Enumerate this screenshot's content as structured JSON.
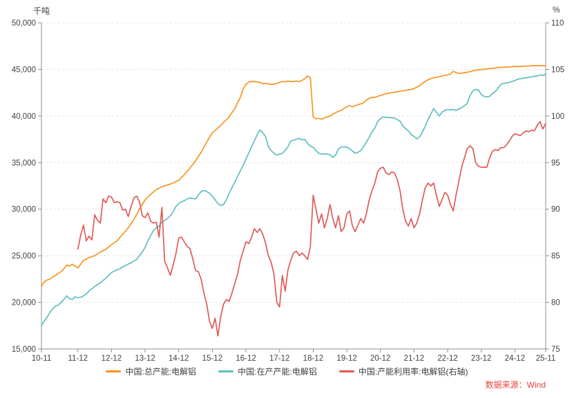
{
  "footer": {
    "source": "数据来源：Wind"
  },
  "chart_data": {
    "type": "line",
    "title": "",
    "grid": "horizontal-dashed",
    "legend_position": "bottom",
    "x_start": "2010-11",
    "x_end": "2025-11",
    "x_frequency": "monthly",
    "left_axis": {
      "label": "千吨",
      "min": 15000,
      "max": 50000,
      "step": 5000
    },
    "right_axis": {
      "label": "%",
      "min": 75,
      "max": 110,
      "step": 5
    },
    "x_ticks": [
      {
        "label": "10-11",
        "i": 0
      },
      {
        "label": "11-12",
        "i": 13
      },
      {
        "label": "12-12",
        "i": 25
      },
      {
        "label": "13-12",
        "i": 37
      },
      {
        "label": "14-12",
        "i": 49
      },
      {
        "label": "15-12",
        "i": 61
      },
      {
        "label": "16-12",
        "i": 73
      },
      {
        "label": "17-12",
        "i": 85
      },
      {
        "label": "18-12",
        "i": 97
      },
      {
        "label": "19-12",
        "i": 109
      },
      {
        "label": "20-12",
        "i": 121
      },
      {
        "label": "21-12",
        "i": 133
      },
      {
        "label": "22-12",
        "i": 145
      },
      {
        "label": "23-12",
        "i": 157
      },
      {
        "label": "24-12",
        "i": 169
      },
      {
        "label": "25-11",
        "i": 180
      }
    ],
    "series": [
      {
        "name": "中国:总产能:电解铝",
        "axis": "left",
        "color": "#F7941E",
        "values": [
          21700,
          22200,
          22400,
          22500,
          22700,
          22900,
          23100,
          23300,
          23600,
          24000,
          23900,
          24100,
          23900,
          23700,
          24100,
          24500,
          24650,
          24800,
          24900,
          25000,
          25200,
          25400,
          25550,
          25700,
          25950,
          26200,
          26400,
          26600,
          26950,
          27300,
          27650,
          28000,
          28450,
          28900,
          29450,
          30000,
          30500,
          31000,
          31300,
          31600,
          31850,
          32100,
          32250,
          32400,
          32500,
          32600,
          32700,
          32800,
          32950,
          33100,
          33400,
          33700,
          34050,
          34400,
          34800,
          35200,
          35650,
          36100,
          36650,
          37200,
          37700,
          38200,
          38450,
          38700,
          39000,
          39300,
          39600,
          39900,
          40350,
          40800,
          41400,
          42000,
          42900,
          43400,
          43650,
          43700,
          43700,
          43650,
          43600,
          43450,
          43500,
          43450,
          43400,
          43400,
          43500,
          43600,
          43700,
          43700,
          43750,
          43700,
          43700,
          43750,
          43700,
          43800,
          44000,
          44300,
          44100,
          39900,
          39700,
          39750,
          39650,
          39800,
          39900,
          40000,
          40200,
          40350,
          40500,
          40600,
          40800,
          41000,
          41100,
          41000,
          41100,
          41200,
          41300,
          41400,
          41700,
          41900,
          42000,
          42000,
          42100,
          42200,
          42300,
          42400,
          42450,
          42500,
          42550,
          42600,
          42650,
          42700,
          42750,
          42800,
          42850,
          42950,
          43100,
          43250,
          43500,
          43700,
          43900,
          44000,
          44100,
          44150,
          44200,
          44300,
          44350,
          44400,
          44500,
          44800,
          44650,
          44550,
          44600,
          44650,
          44700,
          44750,
          44850,
          44900,
          44950,
          45000,
          45000,
          45050,
          45100,
          45100,
          45150,
          45200,
          45200,
          45250,
          45250,
          45250,
          45300,
          45300,
          45300,
          45300,
          45350,
          45350,
          45350,
          45400,
          45400,
          45400,
          45400,
          45400,
          45400
        ]
      },
      {
        "name": "中国:在产产能:电解铝",
        "axis": "left",
        "color": "#5EBFC1",
        "values": [
          17500,
          18000,
          18400,
          18900,
          19300,
          19600,
          19700,
          20000,
          20300,
          20700,
          20400,
          20300,
          20600,
          20500,
          20550,
          20700,
          20900,
          21200,
          21450,
          21700,
          21900,
          22100,
          22350,
          22600,
          22900,
          23200,
          23350,
          23500,
          23600,
          23800,
          23950,
          24100,
          24250,
          24450,
          24600,
          25000,
          25400,
          25900,
          26600,
          27200,
          27700,
          28000,
          28200,
          28600,
          28800,
          29000,
          29300,
          29700,
          30300,
          30600,
          30800,
          30900,
          31100,
          31200,
          31150,
          31100,
          31500,
          31900,
          32000,
          31900,
          31700,
          31400,
          31000,
          30600,
          30400,
          30500,
          31000,
          31700,
          32300,
          32900,
          33500,
          34100,
          34700,
          35400,
          36000,
          36700,
          37300,
          38000,
          38500,
          38200,
          37800,
          36700,
          36300,
          36000,
          35800,
          35900,
          36000,
          36300,
          36700,
          37300,
          37400,
          37500,
          37600,
          37450,
          37500,
          37050,
          36750,
          36650,
          36300,
          36000,
          35900,
          35950,
          35900,
          35850,
          35550,
          35800,
          36450,
          36650,
          36700,
          36650,
          36500,
          36250,
          36000,
          36100,
          36300,
          36700,
          37200,
          37700,
          38300,
          38700,
          39400,
          39700,
          39900,
          39850,
          39850,
          39800,
          39800,
          39600,
          39450,
          38950,
          38650,
          38400,
          38000,
          37800,
          37550,
          37750,
          38300,
          38900,
          39600,
          40200,
          40800,
          40400,
          40000,
          40400,
          40600,
          40700,
          40650,
          40700,
          40600,
          40750,
          40900,
          41100,
          41350,
          42200,
          42700,
          42850,
          42800,
          42300,
          42100,
          42050,
          42100,
          42400,
          42600,
          43000,
          43400,
          43500,
          43550,
          43600,
          43700,
          43800,
          43950,
          44000,
          44050,
          44100,
          44150,
          44200,
          44250,
          44300,
          44400,
          44350,
          44500
        ]
      },
      {
        "name": "中国:产能利用率:电解铝(右轴)",
        "axis": "right",
        "color": "#DF5A58",
        "values": [
          null,
          null,
          null,
          null,
          null,
          null,
          null,
          null,
          null,
          null,
          null,
          null,
          null,
          85.7,
          87.2,
          88.3,
          86.6,
          87.1,
          86.7,
          89.4,
          88.8,
          88.5,
          91.1,
          90.7,
          91.4,
          91.3,
          90.7,
          90.8,
          90.7,
          89.9,
          90.0,
          89.2,
          90.3,
          91.2,
          91.4,
          90.8,
          89.3,
          89.1,
          89.6,
          88.7,
          88.5,
          88.6,
          87.0,
          90.2,
          84.4,
          83.7,
          82.9,
          84.0,
          85.2,
          86.9,
          87.0,
          86.5,
          86.0,
          85.8,
          84.7,
          83.4,
          83.3,
          82.5,
          81.0,
          79.8,
          78.0,
          77.2,
          78.3,
          76.4,
          78.5,
          79.8,
          80.3,
          80.1,
          81.0,
          82.0,
          83.0,
          84.5,
          85.5,
          86.5,
          86.3,
          87.0,
          87.9,
          87.5,
          87.9,
          87.3,
          86.4,
          85.0,
          84.3,
          83.0,
          80.0,
          79.5,
          82.9,
          81.2,
          83.5,
          84.5,
          85.3,
          85.5,
          85.0,
          85.3,
          85.0,
          84.6,
          86.0,
          91.5,
          90.0,
          88.5,
          89.5,
          88.0,
          89.0,
          90.5,
          89.0,
          88.0,
          89.3,
          87.6,
          88.0,
          89.5,
          89.8,
          88.2,
          87.6,
          88.3,
          89.0,
          88.5,
          89.5,
          91.0,
          92.0,
          92.8,
          94.0,
          94.4,
          94.5,
          93.9,
          93.7,
          94.0,
          93.9,
          93.2,
          92.0,
          90.0,
          88.7,
          88.2,
          89.0,
          88.0,
          88.5,
          89.5,
          91.0,
          92.3,
          92.8,
          92.5,
          92.8,
          91.5,
          90.3,
          91.0,
          91.8,
          91.5,
          90.5,
          89.8,
          91.5,
          93.0,
          94.5,
          95.5,
          96.5,
          96.8,
          96.5,
          95.0,
          94.6,
          94.5,
          94.5,
          94.5,
          95.5,
          96.2,
          96.4,
          96.3,
          96.6,
          96.6,
          96.9,
          97.3,
          97.8,
          98.1,
          98.0,
          97.9,
          98.2,
          98.4,
          98.3,
          98.5,
          98.4,
          99.0,
          99.4,
          98.6,
          99.2
        ]
      }
    ]
  }
}
